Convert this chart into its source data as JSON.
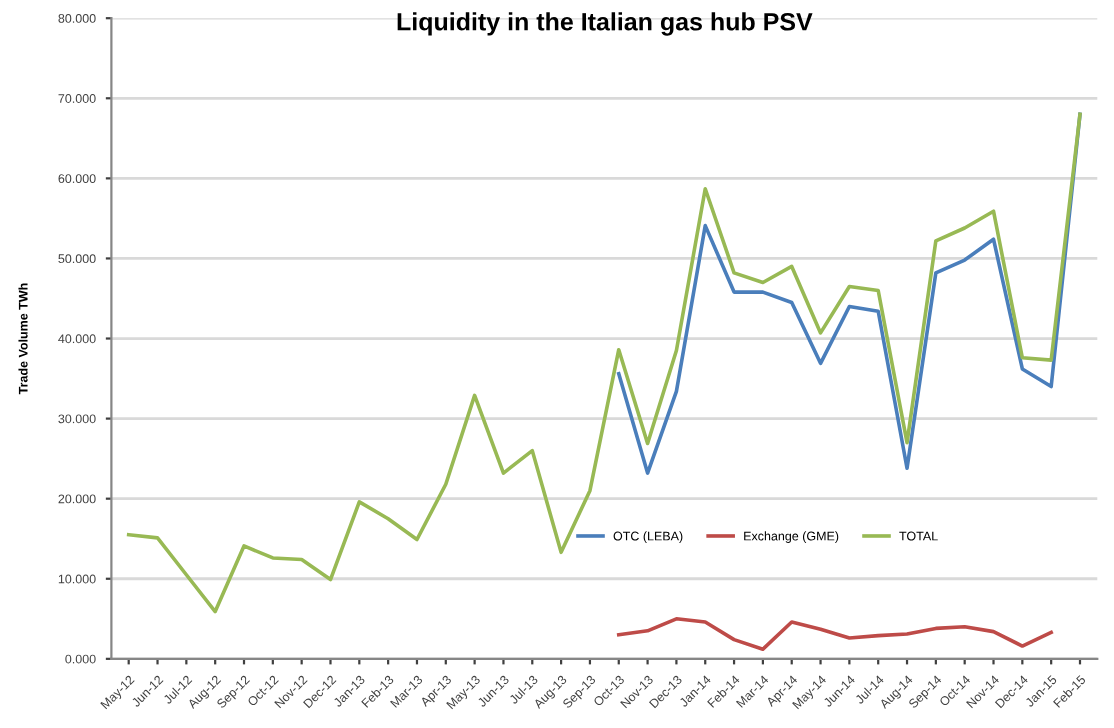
{
  "chart_data": {
    "type": "line",
    "title": "Liquidity in the Italian gas hub PSV",
    "ylabel": "Trade Volume TWh",
    "categories": [
      "May-12",
      "Jun-12",
      "Jul-12",
      "Aug-12",
      "Sep-12",
      "Oct-12",
      "Nov-12",
      "Dec-12",
      "Jan-13",
      "Feb-13",
      "Mar-13",
      "Apr-13",
      "May-13",
      "Jun-13",
      "Jul-13",
      "Aug-13",
      "Sep-13",
      "Oct-13",
      "Nov-13",
      "Dec-13",
      "Jan-14",
      "Feb-14",
      "Mar-14",
      "Apr-14",
      "May-14",
      "Jun-14",
      "Jul-14",
      "Aug-14",
      "Sep-14",
      "Oct-14",
      "Nov-14",
      "Dec-14",
      "Jan-15",
      "Feb-15"
    ],
    "series": [
      {
        "name": "OTC (LEBA)",
        "color": "#4a7ebb",
        "values": [
          null,
          null,
          null,
          null,
          null,
          null,
          null,
          null,
          null,
          null,
          null,
          null,
          null,
          null,
          null,
          null,
          null,
          35.6,
          23.2,
          33.4,
          54.1,
          45.8,
          45.8,
          44.5,
          36.9,
          44.0,
          43.4,
          23.8,
          48.2,
          49.8,
          52.4,
          36.2,
          34.0,
          68.0
        ]
      },
      {
        "name": "Exchange (GME)",
        "color": "#be4b48",
        "values": [
          null,
          null,
          null,
          null,
          null,
          null,
          null,
          null,
          null,
          null,
          null,
          null,
          null,
          null,
          null,
          null,
          null,
          3.0,
          3.5,
          5.0,
          4.6,
          2.4,
          1.2,
          4.6,
          3.7,
          2.6,
          2.9,
          3.1,
          3.8,
          4.0,
          3.4,
          1.6,
          3.3,
          null
        ]
      },
      {
        "name": "TOTAL",
        "color": "#98b954",
        "values": [
          15.5,
          15.1,
          10.5,
          5.9,
          14.1,
          12.6,
          12.4,
          9.9,
          19.6,
          17.5,
          14.9,
          21.8,
          32.9,
          23.2,
          26.0,
          13.3,
          21.0,
          38.6,
          26.9,
          38.5,
          58.7,
          48.2,
          47.0,
          49.0,
          40.7,
          46.5,
          46.0,
          27.0,
          52.2,
          53.8,
          55.9,
          37.6,
          37.3,
          68.0
        ]
      }
    ],
    "ylim": [
      0,
      80
    ],
    "yticks": [
      {
        "value": 0,
        "label": "0.000"
      },
      {
        "value": 10,
        "label": "10.000"
      },
      {
        "value": 20,
        "label": "20.000"
      },
      {
        "value": 30,
        "label": "30.000"
      },
      {
        "value": 40,
        "label": "40.000"
      },
      {
        "value": 50,
        "label": "50.000"
      },
      {
        "value": 60,
        "label": "60.000"
      },
      {
        "value": 70,
        "label": "70.000"
      },
      {
        "value": 80,
        "label": "80.000"
      }
    ],
    "grid": "y",
    "legend": "right",
    "marker": "none",
    "line_style": "solid"
  }
}
